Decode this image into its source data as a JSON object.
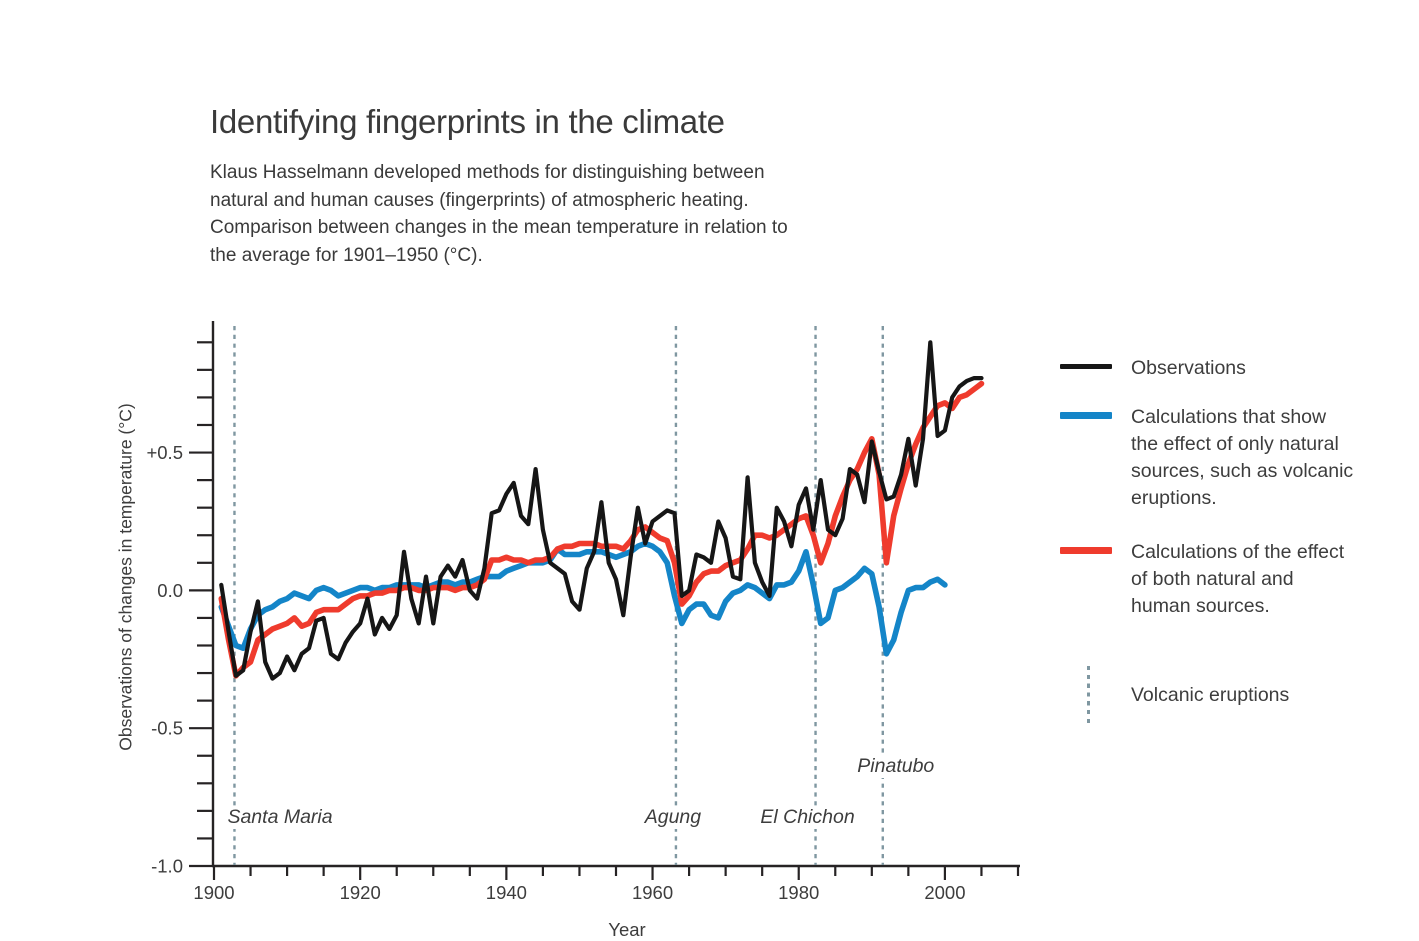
{
  "header": {
    "title": "Identifying fingerprints in the climate",
    "subtitle_lines": [
      "Klaus Hasselmann developed methods for distinguishing between",
      "natural and human causes (fingerprints) of atmospheric heating.",
      "Comparison between changes in the mean temperature in relation to",
      "the average for 1901–1950 (°C)."
    ]
  },
  "legend": {
    "items": [
      {
        "swatch": "line",
        "color": "#161616",
        "label_lines": [
          "Observations"
        ]
      },
      {
        "swatch": "line",
        "color": "#1485c8",
        "label_lines": [
          "Calculations that show",
          "the effect of only natural",
          "sources, such as volcanic",
          "eruptions."
        ]
      },
      {
        "swatch": "line",
        "color": "#ef3b2d",
        "label_lines": [
          "Calculations of the effect",
          "of both natural and",
          "human sources."
        ]
      },
      {
        "swatch": "dashed-vertical",
        "color": "#7f97a1",
        "label_lines": [
          "Volcanic eruptions"
        ]
      }
    ]
  },
  "chart_data": {
    "type": "line",
    "title": "Identifying fingerprints in the climate",
    "xlabel": "Year",
    "ylabel": "Observations of changes in temperature (°C)",
    "xlim": [
      1900,
      2010
    ],
    "ylim": [
      -1.0,
      0.97
    ],
    "grid": false,
    "legend_position": "right",
    "x_ticks_labeled": [
      1900,
      1920,
      1940,
      1960,
      1980,
      2000
    ],
    "x_minor_step": 5,
    "y_ticks_labeled": [
      {
        "value": 0.5,
        "label": "+0.5"
      },
      {
        "value": 0.0,
        "label": "0.0"
      },
      {
        "value": -0.5,
        "label": "-0.5"
      },
      {
        "value": -1.0,
        "label": "-1.0"
      }
    ],
    "y_minor_step": 0.1,
    "eruption_line_color": "#7f97a1",
    "axis_color": "#262324",
    "eruptions": [
      {
        "name": "Santa Maria",
        "year": 1902.8
      },
      {
        "name": "Agung",
        "year": 1963.2
      },
      {
        "name": "El Chichon",
        "year": 1982.3
      },
      {
        "name": "Pinatubo",
        "year": 1991.5
      }
    ],
    "series": [
      {
        "name": "Observations",
        "color": "#161616",
        "start_year": 1901,
        "values": [
          0.02,
          -0.15,
          -0.31,
          -0.29,
          -0.15,
          -0.04,
          -0.26,
          -0.32,
          -0.3,
          -0.24,
          -0.29,
          -0.23,
          -0.21,
          -0.11,
          -0.1,
          -0.23,
          -0.25,
          -0.19,
          -0.15,
          -0.12,
          -0.03,
          -0.16,
          -0.1,
          -0.14,
          -0.09,
          0.14,
          -0.03,
          -0.12,
          0.05,
          -0.12,
          0.05,
          0.09,
          0.05,
          0.11,
          0.0,
          -0.03,
          0.08,
          0.28,
          0.29,
          0.35,
          0.39,
          0.27,
          0.24,
          0.44,
          0.22,
          0.1,
          0.08,
          0.06,
          -0.04,
          -0.07,
          0.08,
          0.14,
          0.32,
          0.1,
          0.04,
          -0.09,
          0.12,
          0.3,
          0.17,
          0.25,
          0.27,
          0.29,
          0.28,
          -0.02,
          0.0,
          0.13,
          0.12,
          0.1,
          0.25,
          0.19,
          0.05,
          0.04,
          0.41,
          0.1,
          0.03,
          -0.02,
          0.3,
          0.25,
          0.16,
          0.31,
          0.37,
          0.22,
          0.4,
          0.22,
          0.2,
          0.26,
          0.44,
          0.42,
          0.32,
          0.54,
          0.43,
          0.33,
          0.34,
          0.42,
          0.55,
          0.38,
          0.55,
          0.9,
          0.56,
          0.58,
          0.7,
          0.74,
          0.76,
          0.77,
          0.77
        ]
      },
      {
        "name": "Calculations that show the effect of only natural sources, such as volcanic eruptions.",
        "color": "#1485c8",
        "start_year": 1901,
        "values": [
          -0.06,
          -0.13,
          -0.2,
          -0.21,
          -0.14,
          -0.09,
          -0.07,
          -0.06,
          -0.04,
          -0.03,
          -0.01,
          -0.02,
          -0.03,
          0.0,
          0.01,
          0.0,
          -0.02,
          -0.01,
          0.0,
          0.01,
          0.01,
          0.0,
          0.01,
          0.01,
          0.02,
          0.02,
          0.02,
          0.02,
          0.01,
          0.02,
          0.03,
          0.03,
          0.02,
          0.03,
          0.03,
          0.04,
          0.05,
          0.05,
          0.05,
          0.07,
          0.08,
          0.09,
          0.1,
          0.1,
          0.1,
          0.11,
          0.15,
          0.13,
          0.13,
          0.13,
          0.14,
          0.14,
          0.14,
          0.13,
          0.12,
          0.13,
          0.14,
          0.16,
          0.17,
          0.16,
          0.14,
          0.1,
          -0.02,
          -0.12,
          -0.07,
          -0.05,
          -0.05,
          -0.09,
          -0.1,
          -0.04,
          -0.01,
          0.0,
          0.02,
          0.01,
          -0.01,
          -0.03,
          0.02,
          0.02,
          0.03,
          0.07,
          0.14,
          0.02,
          -0.12,
          -0.1,
          0.0,
          0.01,
          0.03,
          0.05,
          0.08,
          0.06,
          -0.06,
          -0.23,
          -0.18,
          -0.08,
          0.0,
          0.01,
          0.01,
          0.03,
          0.04,
          0.02
        ]
      },
      {
        "name": "Calculations of the effect of both natural and human sources.",
        "color": "#ef3b2d",
        "start_year": 1901,
        "values": [
          -0.03,
          -0.18,
          -0.31,
          -0.28,
          -0.26,
          -0.18,
          -0.16,
          -0.14,
          -0.13,
          -0.12,
          -0.1,
          -0.13,
          -0.12,
          -0.08,
          -0.07,
          -0.07,
          -0.07,
          -0.05,
          -0.03,
          -0.02,
          -0.02,
          -0.01,
          -0.01,
          0.0,
          0.0,
          0.01,
          0.01,
          0.0,
          0.0,
          0.01,
          0.01,
          0.01,
          0.0,
          0.01,
          0.01,
          0.02,
          0.04,
          0.11,
          0.11,
          0.12,
          0.11,
          0.11,
          0.1,
          0.11,
          0.11,
          0.12,
          0.15,
          0.16,
          0.16,
          0.17,
          0.17,
          0.17,
          0.16,
          0.16,
          0.16,
          0.15,
          0.18,
          0.22,
          0.23,
          0.21,
          0.19,
          0.18,
          0.1,
          -0.05,
          -0.02,
          0.03,
          0.06,
          0.07,
          0.07,
          0.09,
          0.1,
          0.11,
          0.15,
          0.2,
          0.2,
          0.19,
          0.2,
          0.22,
          0.24,
          0.26,
          0.27,
          0.2,
          0.1,
          0.17,
          0.27,
          0.34,
          0.4,
          0.44,
          0.5,
          0.55,
          0.42,
          0.1,
          0.27,
          0.37,
          0.46,
          0.53,
          0.59,
          0.63,
          0.67,
          0.68,
          0.66,
          0.7,
          0.71,
          0.73,
          0.75
        ]
      }
    ]
  }
}
